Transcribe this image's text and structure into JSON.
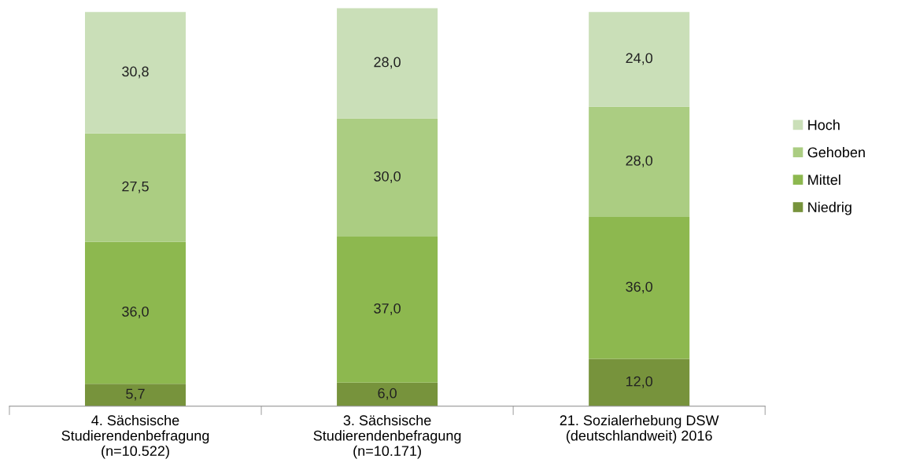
{
  "chart_data": {
    "type": "bar",
    "stacked": true,
    "tick_labels": "x",
    "legend": "right",
    "grid": false,
    "ylim": [
      0,
      101
    ],
    "categories": [
      "4. Sächsische\nStudierendenbefragung\n(n=10.522)",
      "3. Sächsische\nStudierendenbefragung\n(n=10.171)",
      "21. Sozialerhebung DSW\n(deutschlandweit) 2016"
    ],
    "series": [
      {
        "name": "Niedrig",
        "color": "#77933c",
        "values": [
          5.7,
          6.0,
          12.0
        ],
        "value_labels": [
          "5,7",
          "6,0",
          "12,0"
        ]
      },
      {
        "name": "Mittel",
        "color": "#8db84f",
        "values": [
          36.0,
          37.0,
          36.0
        ],
        "value_labels": [
          "36,0",
          "37,0",
          "36,0"
        ]
      },
      {
        "name": "Gehoben",
        "color": "#abcd82",
        "values": [
          27.5,
          30.0,
          28.0
        ],
        "value_labels": [
          "27,5",
          "30,0",
          "28,0"
        ]
      },
      {
        "name": "Hoch",
        "color": "#cadfb8",
        "values": [
          30.8,
          28.0,
          24.0
        ],
        "value_labels": [
          "30,8",
          "28,0",
          "24,0"
        ]
      }
    ]
  }
}
